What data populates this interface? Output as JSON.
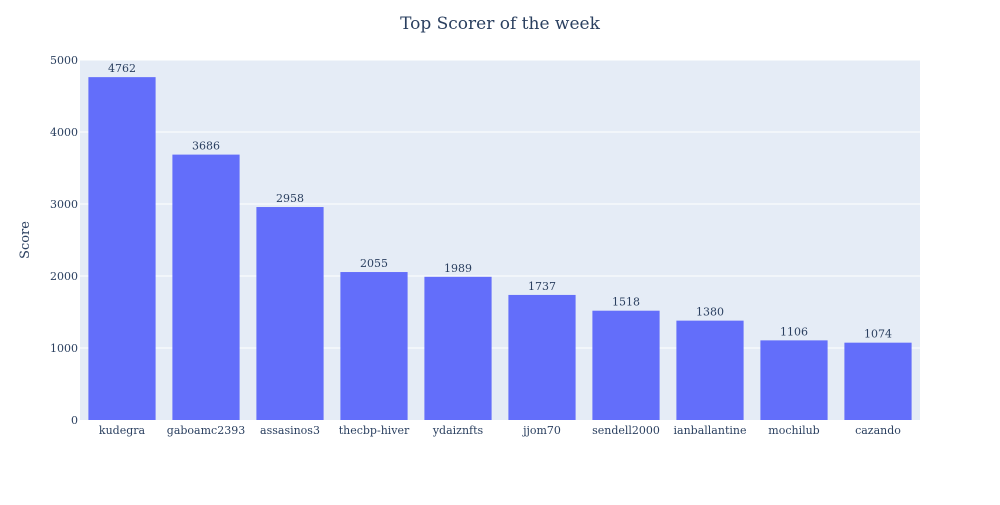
{
  "colors": {
    "plot_background": "#e5ecf6",
    "bar": "#636efa",
    "text": "#2a3f5f",
    "grid": "#ffffff"
  },
  "chart_data": {
    "type": "bar",
    "title": "Top Scorer of the week",
    "xlabel": "",
    "ylabel": "Score",
    "categories": [
      "kudegra",
      "gaboamc2393",
      "assasinos3",
      "thecbp-hiver",
      "ydaiznfts",
      "jjom70",
      "sendell2000",
      "ianballantine",
      "mochilub",
      "cazando"
    ],
    "values": [
      4762,
      3686,
      2958,
      2055,
      1989,
      1737,
      1518,
      1380,
      1106,
      1074
    ],
    "ylim": [
      0,
      5000
    ],
    "yticks": [
      0,
      1000,
      2000,
      3000,
      4000,
      5000
    ],
    "grid": true,
    "data_labels": true,
    "legend": false
  }
}
